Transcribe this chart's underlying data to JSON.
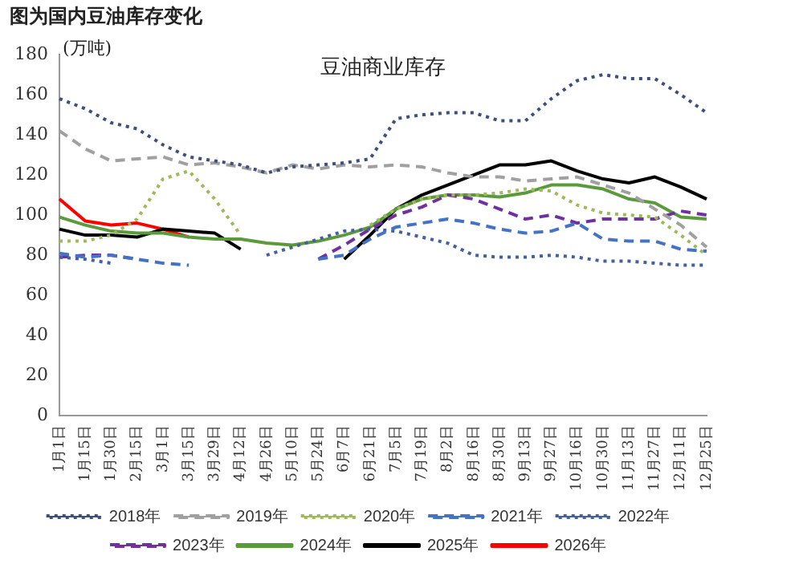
{
  "chart_data": {
    "type": "line",
    "title": "图为国内豆油库存变化",
    "subtitle": "豆油商业库存",
    "ylabel": "(万吨)",
    "categories": [
      "1月1日",
      "1月15日",
      "1月30日",
      "2月15日",
      "3月1日",
      "3月15日",
      "3月29日",
      "4月12日",
      "4月26日",
      "5月10日",
      "5月24日",
      "6月7日",
      "6月21日",
      "7月5日",
      "7月19日",
      "8月2日",
      "8月16日",
      "8月30日",
      "9月13日",
      "9月27日",
      "10月16日",
      "10月30日",
      "11月13日",
      "11月27日",
      "12月11日",
      "12月25日"
    ],
    "ylim": [
      0,
      180
    ],
    "yticks": [
      0,
      20,
      40,
      60,
      80,
      100,
      120,
      140,
      160,
      180
    ],
    "grid": false,
    "legend": "bottom",
    "marker": "none",
    "series": [
      {
        "name": "2018年",
        "color": "#3d4f7c",
        "line_style": "dotted",
        "values": [
          158,
          153,
          146,
          143,
          135,
          129,
          127,
          125,
          121,
          124,
          125,
          126,
          128,
          148,
          150,
          151,
          151,
          147,
          147,
          158,
          167,
          170,
          168,
          168,
          160,
          151
        ]
      },
      {
        "name": "2019年",
        "color": "#a0a0a0",
        "line_style": "dashed",
        "values": [
          142,
          133,
          127,
          128,
          129,
          125,
          126,
          124,
          121,
          125,
          123,
          125,
          124,
          125,
          124,
          121,
          119,
          119,
          117,
          118,
          119,
          115,
          111,
          103,
          95,
          84
        ]
      },
      {
        "name": "2020年",
        "color": "#9bbb59",
        "line_style": "dotted",
        "values": [
          87,
          87,
          90,
          98,
          118,
          122,
          108,
          90,
          null,
          null,
          null,
          null,
          95,
          103,
          108,
          110,
          110,
          111,
          113,
          112,
          105,
          101,
          100,
          99,
          90,
          80
        ]
      },
      {
        "name": "2021年",
        "color": "#4472c4",
        "line_style": "dashed",
        "values": [
          81,
          79,
          80,
          78,
          76,
          75,
          null,
          null,
          null,
          null,
          78,
          80,
          88,
          94,
          96,
          98,
          96,
          93,
          91,
          92,
          96,
          88,
          87,
          87,
          83,
          82
        ]
      },
      {
        "name": "2022年",
        "color": "#44619e",
        "line_style": "dotted",
        "values": [
          79,
          78,
          76,
          null,
          null,
          null,
          null,
          null,
          80,
          84,
          88,
          92,
          93,
          92,
          89,
          86,
          80,
          79,
          79,
          80,
          79,
          77,
          77,
          76,
          75,
          75
        ]
      },
      {
        "name": "2023年",
        "color": "#7030a0",
        "line_style": "dashed",
        "values": [
          79,
          80,
          80,
          78,
          null,
          null,
          null,
          null,
          null,
          null,
          78,
          85,
          93,
          100,
          104,
          110,
          108,
          103,
          98,
          100,
          96,
          98,
          98,
          98,
          102,
          100
        ]
      },
      {
        "name": "2024年",
        "color": "#5a9a3c",
        "line_style": "solid",
        "values": [
          99,
          95,
          92,
          91,
          91,
          89,
          88,
          88,
          86,
          85,
          87,
          90,
          94,
          103,
          108,
          110,
          110,
          109,
          111,
          115,
          115,
          113,
          108,
          106,
          99,
          98
        ]
      },
      {
        "name": "2025年",
        "color": "#000000",
        "line_style": "solid",
        "values": [
          93,
          90,
          90,
          89,
          93,
          92,
          91,
          83,
          null,
          null,
          null,
          78,
          90,
          103,
          110,
          115,
          120,
          125,
          125,
          127,
          122,
          118,
          116,
          119,
          114,
          108
        ]
      },
      {
        "name": "2026年",
        "color": "#ff0000",
        "line_style": "solid",
        "values": [
          108,
          97,
          95,
          96,
          93,
          89,
          null,
          null,
          null,
          null,
          null,
          null,
          null,
          null,
          null,
          null,
          null,
          null,
          null,
          null,
          null,
          null,
          null,
          null,
          null,
          null
        ]
      }
    ]
  }
}
